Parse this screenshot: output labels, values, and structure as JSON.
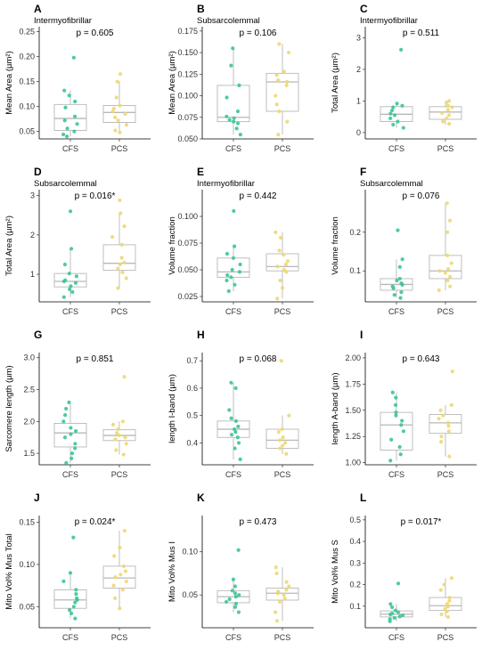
{
  "colors": {
    "CFS": "#3cc496",
    "PCS": "#ecd873"
  },
  "chart_data": [
    {
      "type": "box",
      "letter": "A",
      "title": "Intermyofibrillar",
      "ylabel": "Mean Area (µm²)",
      "p": "p = 0.605",
      "ylim": [
        0.035,
        0.26
      ],
      "yticks": [
        0.05,
        0.1,
        0.15,
        0.2,
        0.25
      ],
      "ytick_labels": [
        "0.05",
        "0.10",
        "0.15",
        "0.20",
        "0.25"
      ],
      "categories": [
        "CFS",
        "PCS"
      ],
      "groups": [
        {
          "name": "CFS",
          "box": [
            0.052,
            0.076,
            0.104
          ],
          "whiskers": [
            0.04,
            0.132
          ],
          "points": [
            0.198,
            0.132,
            0.122,
            0.11,
            0.098,
            0.08,
            0.072,
            0.065,
            0.056,
            0.05,
            0.044,
            0.04
          ]
        },
        {
          "name": "PCS",
          "box": [
            0.068,
            0.088,
            0.102
          ],
          "whiskers": [
            0.048,
            0.15
          ],
          "points": [
            0.165,
            0.15,
            0.118,
            0.102,
            0.096,
            0.09,
            0.085,
            0.078,
            0.072,
            0.063,
            0.052,
            0.048
          ]
        }
      ]
    },
    {
      "type": "box",
      "letter": "B",
      "title": "Subsarcolemmal",
      "ylabel": "Mean Area  (µm²)",
      "p": "p = 0.106",
      "ylim": [
        0.05,
        0.18
      ],
      "yticks": [
        0.05,
        0.075,
        0.1,
        0.125,
        0.15,
        0.175
      ],
      "ytick_labels": [
        "0.050",
        "0.075",
        "0.100",
        "0.125",
        "0.150",
        "0.175"
      ],
      "categories": [
        "CFS",
        "PCS"
      ],
      "groups": [
        {
          "name": "CFS",
          "box": [
            0.07,
            0.075,
            0.112
          ],
          "whiskers": [
            0.055,
            0.155
          ],
          "points": [
            0.155,
            0.135,
            0.112,
            0.098,
            0.082,
            0.076,
            0.074,
            0.072,
            0.07,
            0.068,
            0.062,
            0.055
          ]
        },
        {
          "name": "PCS",
          "box": [
            0.082,
            0.116,
            0.126
          ],
          "whiskers": [
            0.055,
            0.16
          ],
          "points": [
            0.16,
            0.15,
            0.128,
            0.124,
            0.118,
            0.116,
            0.112,
            0.1,
            0.09,
            0.082,
            0.07,
            0.055
          ]
        }
      ]
    },
    {
      "type": "box",
      "letter": "C",
      "title": "Intermyofibrillar",
      "ylabel": "Total Area (µm²)",
      "p": "p = 0.511",
      "ylim": [
        -0.2,
        3.35
      ],
      "yticks": [
        0,
        1,
        2,
        3
      ],
      "ytick_labels": [
        "0",
        "1",
        "2",
        "3"
      ],
      "categories": [
        "CFS",
        "PCS"
      ],
      "groups": [
        {
          "name": "CFS",
          "box": [
            0.35,
            0.58,
            0.82
          ],
          "whiskers": [
            0.15,
            0.92
          ],
          "points": [
            2.62,
            0.92,
            0.85,
            0.8,
            0.7,
            0.6,
            0.55,
            0.45,
            0.35,
            0.25,
            0.15
          ]
        },
        {
          "name": "PCS",
          "box": [
            0.42,
            0.65,
            0.82
          ],
          "whiskers": [
            0.25,
            1.0
          ],
          "points": [
            1.0,
            0.95,
            0.85,
            0.8,
            0.72,
            0.62,
            0.55,
            0.45,
            0.35,
            0.28
          ]
        }
      ]
    },
    {
      "type": "box",
      "letter": "D",
      "title": "Subsarcolemmal",
      "ylabel": "Total Area (µm²)",
      "p": "p = 0.016*",
      "ylim": [
        0.3,
        3.15
      ],
      "yticks": [
        1,
        2,
        3
      ],
      "ytick_labels": [
        "1",
        "2",
        "3"
      ],
      "categories": [
        "CFS",
        "PCS"
      ],
      "groups": [
        {
          "name": "CFS",
          "box": [
            0.68,
            0.82,
            1.02
          ],
          "whiskers": [
            0.42,
            1.65
          ],
          "points": [
            2.6,
            1.65,
            1.25,
            1.02,
            0.95,
            0.85,
            0.82,
            0.78,
            0.7,
            0.62,
            0.55,
            0.42
          ]
        },
        {
          "name": "PCS",
          "box": [
            1.1,
            1.28,
            1.75
          ],
          "whiskers": [
            0.65,
            2.55
          ],
          "points": [
            2.88,
            2.55,
            2.22,
            1.95,
            1.75,
            1.42,
            1.3,
            1.25,
            1.15,
            1.05,
            0.9,
            0.65
          ]
        }
      ]
    },
    {
      "type": "box",
      "letter": "E",
      "title": "Intermyofibrillar",
      "ylabel": "Volume fraction",
      "p": "p = 0.442",
      "ylim": [
        0.02,
        0.125
      ],
      "yticks": [
        0.025,
        0.05,
        0.075,
        0.1
      ],
      "ytick_labels": [
        "0.025",
        "0.050",
        "0.075",
        "0.100"
      ],
      "categories": [
        "CFS",
        "PCS"
      ],
      "groups": [
        {
          "name": "CFS",
          "box": [
            0.043,
            0.048,
            0.061
          ],
          "whiskers": [
            0.03,
            0.072
          ],
          "points": [
            0.105,
            0.072,
            0.065,
            0.061,
            0.055,
            0.05,
            0.048,
            0.045,
            0.043,
            0.04,
            0.036,
            0.03
          ]
        },
        {
          "name": "PCS",
          "box": [
            0.049,
            0.053,
            0.065
          ],
          "whiskers": [
            0.023,
            0.085
          ],
          "points": [
            0.085,
            0.08,
            0.068,
            0.064,
            0.058,
            0.055,
            0.053,
            0.05,
            0.048,
            0.04,
            0.033,
            0.023
          ]
        }
      ]
    },
    {
      "type": "box",
      "letter": "F",
      "title": "Subsarcolemmal",
      "ylabel": "Volume fraction",
      "p": "p = 0.076",
      "ylim": [
        0.02,
        0.31
      ],
      "yticks": [
        0.1,
        0.2
      ],
      "ytick_labels": [
        "0.1",
        "0.2"
      ],
      "categories": [
        "CFS",
        "PCS"
      ],
      "groups": [
        {
          "name": "CFS",
          "box": [
            0.05,
            0.065,
            0.08
          ],
          "whiskers": [
            0.03,
            0.13
          ],
          "points": [
            0.205,
            0.13,
            0.11,
            0.08,
            0.075,
            0.068,
            0.064,
            0.06,
            0.055,
            0.045,
            0.038,
            0.03
          ]
        },
        {
          "name": "PCS",
          "box": [
            0.08,
            0.1,
            0.14
          ],
          "whiskers": [
            0.05,
            0.275
          ],
          "points": [
            0.275,
            0.23,
            0.2,
            0.14,
            0.12,
            0.105,
            0.1,
            0.095,
            0.085,
            0.075,
            0.06,
            0.05
          ]
        }
      ]
    },
    {
      "type": "box",
      "letter": "G",
      "title": "",
      "ylabel": "Sarcomere length (µm)",
      "p": "p = 0.851",
      "ylim": [
        1.32,
        3.08
      ],
      "yticks": [
        1.5,
        2.0,
        2.5,
        3.0
      ],
      "ytick_labels": [
        "1.5",
        "2.0",
        "2.5",
        "3.0"
      ],
      "categories": [
        "CFS",
        "PCS"
      ],
      "groups": [
        {
          "name": "CFS",
          "box": [
            1.6,
            1.82,
            1.97
          ],
          "whiskers": [
            1.35,
            2.3
          ],
          "points": [
            2.3,
            2.2,
            2.1,
            2.0,
            1.9,
            1.85,
            1.8,
            1.75,
            1.65,
            1.58,
            1.5,
            1.42,
            1.35
          ]
        },
        {
          "name": "PCS",
          "box": [
            1.7,
            1.78,
            1.87
          ],
          "whiskers": [
            1.48,
            2.0
          ],
          "points": [
            2.7,
            2.0,
            1.95,
            1.88,
            1.82,
            1.78,
            1.75,
            1.72,
            1.65,
            1.55,
            1.48
          ]
        }
      ]
    },
    {
      "type": "box",
      "letter": "H",
      "title": "",
      "ylabel": "length I-band (µm)",
      "p": "p = 0.068",
      "ylim": [
        0.32,
        0.73
      ],
      "yticks": [
        0.4,
        0.5,
        0.6,
        0.7
      ],
      "ytick_labels": [
        "0.4",
        "0.5",
        "0.6",
        "0.7"
      ],
      "categories": [
        "CFS",
        "PCS"
      ],
      "groups": [
        {
          "name": "CFS",
          "box": [
            0.42,
            0.45,
            0.48
          ],
          "whiskers": [
            0.34,
            0.62
          ],
          "points": [
            0.62,
            0.6,
            0.52,
            0.49,
            0.48,
            0.46,
            0.45,
            0.44,
            0.43,
            0.42,
            0.4,
            0.38,
            0.34
          ]
        },
        {
          "name": "PCS",
          "box": [
            0.38,
            0.41,
            0.45
          ],
          "whiskers": [
            0.36,
            0.5
          ],
          "points": [
            0.7,
            0.5,
            0.45,
            0.44,
            0.42,
            0.41,
            0.4,
            0.39,
            0.38,
            0.36
          ]
        }
      ]
    },
    {
      "type": "box",
      "letter": "I",
      "title": "",
      "ylabel": "length A-band (µm)",
      "p": "p = 0.643",
      "ylim": [
        0.98,
        2.05
      ],
      "yticks": [
        1.0,
        1.25,
        1.5,
        1.75,
        2.0
      ],
      "ytick_labels": [
        "1.00",
        "1.25",
        "1.50",
        "1.75",
        "2.00"
      ],
      "categories": [
        "CFS",
        "PCS"
      ],
      "groups": [
        {
          "name": "CFS",
          "box": [
            1.12,
            1.36,
            1.48
          ],
          "whiskers": [
            1.02,
            1.67
          ],
          "points": [
            1.67,
            1.62,
            1.55,
            1.48,
            1.45,
            1.4,
            1.36,
            1.3,
            1.22,
            1.15,
            1.08,
            1.02
          ]
        },
        {
          "name": "PCS",
          "box": [
            1.28,
            1.38,
            1.46
          ],
          "whiskers": [
            1.06,
            1.55
          ],
          "points": [
            1.87,
            1.55,
            1.5,
            1.45,
            1.42,
            1.38,
            1.35,
            1.3,
            1.25,
            1.2,
            1.06
          ]
        }
      ]
    },
    {
      "type": "box",
      "letter": "J",
      "title": "",
      "ylabel": "Mito Vol% Mus Total",
      "p": "p = 0.024*",
      "ylim": [
        0.025,
        0.158
      ],
      "yticks": [
        0.05,
        0.1,
        0.15
      ],
      "ytick_labels": [
        "0.05",
        "0.10",
        "0.15"
      ],
      "categories": [
        "CFS",
        "PCS"
      ],
      "groups": [
        {
          "name": "CFS",
          "box": [
            0.048,
            0.058,
            0.07
          ],
          "whiskers": [
            0.036,
            0.09
          ],
          "points": [
            0.132,
            0.09,
            0.08,
            0.07,
            0.065,
            0.06,
            0.058,
            0.055,
            0.05,
            0.046,
            0.042,
            0.036
          ]
        },
        {
          "name": "PCS",
          "box": [
            0.072,
            0.084,
            0.098
          ],
          "whiskers": [
            0.048,
            0.14
          ],
          "points": [
            0.14,
            0.12,
            0.11,
            0.098,
            0.092,
            0.088,
            0.085,
            0.08,
            0.075,
            0.07,
            0.06,
            0.048
          ]
        }
      ]
    },
    {
      "type": "box",
      "letter": "K",
      "title": "",
      "ylabel": "Mito Vol% Mus I",
      "p": "p = 0.473",
      "ylim": [
        0.012,
        0.142
      ],
      "yticks": [
        0.05,
        0.1
      ],
      "ytick_labels": [
        "0.05",
        "0.10"
      ],
      "categories": [
        "CFS",
        "PCS"
      ],
      "groups": [
        {
          "name": "CFS",
          "box": [
            0.041,
            0.048,
            0.055
          ],
          "whiskers": [
            0.03,
            0.068
          ],
          "points": [
            0.102,
            0.068,
            0.06,
            0.055,
            0.052,
            0.05,
            0.048,
            0.045,
            0.042,
            0.04,
            0.036,
            0.03
          ]
        },
        {
          "name": "PCS",
          "box": [
            0.044,
            0.052,
            0.058
          ],
          "whiskers": [
            0.02,
            0.082
          ],
          "points": [
            0.082,
            0.075,
            0.065,
            0.06,
            0.056,
            0.054,
            0.052,
            0.05,
            0.046,
            0.042,
            0.03,
            0.02
          ]
        }
      ]
    },
    {
      "type": "box",
      "letter": "L",
      "title": "",
      "ylabel": "Mito Vol% Mus S",
      "p": "p = 0.017*",
      "ylim": [
        0.0,
        0.52
      ],
      "yticks": [
        0.1,
        0.2,
        0.3,
        0.4,
        0.5
      ],
      "ytick_labels": [
        "0.1",
        "0.2",
        "0.3",
        "0.4",
        "0.5"
      ],
      "categories": [
        "CFS",
        "PCS"
      ],
      "groups": [
        {
          "name": "CFS",
          "box": [
            0.05,
            0.063,
            0.078
          ],
          "whiskers": [
            0.03,
            0.11
          ],
          "points": [
            0.205,
            0.11,
            0.095,
            0.08,
            0.072,
            0.066,
            0.062,
            0.058,
            0.052,
            0.046,
            0.04,
            0.03
          ]
        },
        {
          "name": "PCS",
          "box": [
            0.08,
            0.102,
            0.14
          ],
          "whiskers": [
            0.05,
            0.23
          ],
          "points": [
            0.23,
            0.2,
            0.175,
            0.14,
            0.125,
            0.11,
            0.102,
            0.098,
            0.088,
            0.075,
            0.062,
            0.05
          ]
        }
      ]
    }
  ]
}
